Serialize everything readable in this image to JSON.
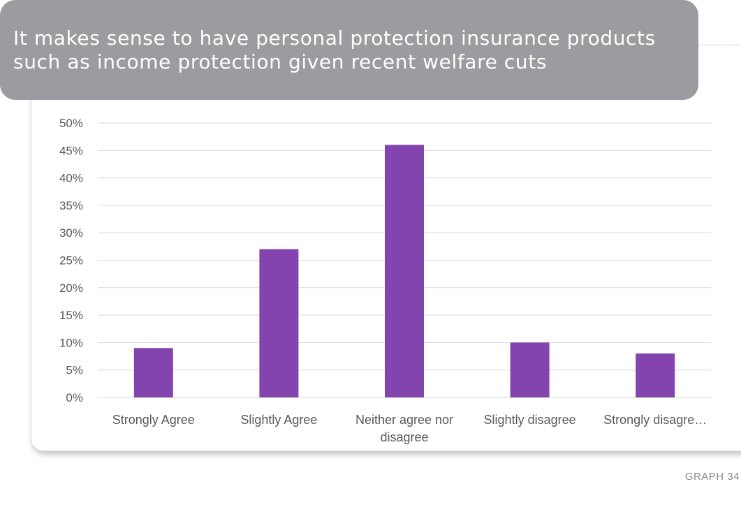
{
  "title_lines": [
    "It makes sense to have personal protection insurance products",
    "such as income protection given recent welfare cuts"
  ],
  "graph_label": "GRAPH 34",
  "colors": {
    "bar": "#8444ad",
    "banner": "#9c9ca0",
    "gridline": "#d9d9d9",
    "tick_text": "#595959"
  },
  "chart_data": {
    "type": "bar",
    "categories": [
      [
        "Strongly Agree"
      ],
      [
        "Slightly Agree"
      ],
      [
        "Neither agree nor",
        "disagree"
      ],
      [
        "Slightly disagree"
      ],
      [
        "Strongly disagre…"
      ]
    ],
    "values": [
      9,
      27,
      46,
      10,
      8
    ],
    "ylim": [
      0,
      50
    ],
    "yticks": [
      "0%",
      "5%",
      "10%",
      "15%",
      "20%",
      "25%",
      "30%",
      "35%",
      "40%",
      "45%",
      "50%"
    ],
    "grid": true,
    "legend": "none",
    "title": "",
    "xlabel": "",
    "ylabel": ""
  }
}
